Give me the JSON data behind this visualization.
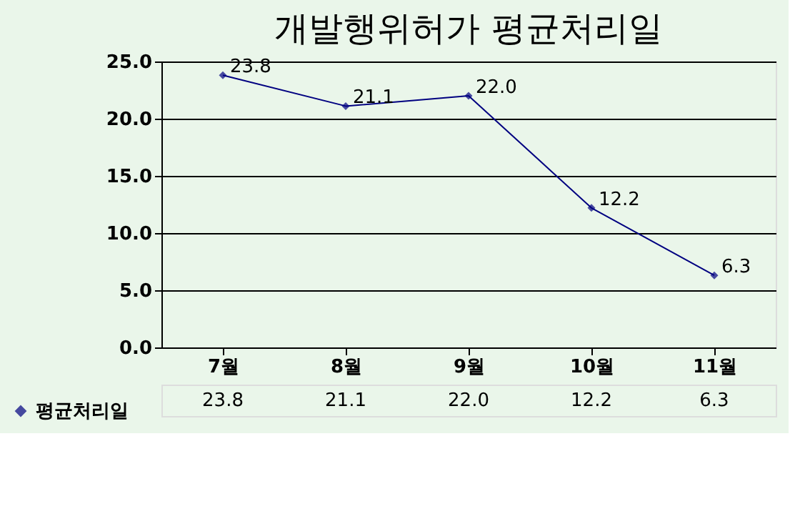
{
  "chart_data": {
    "type": "line",
    "title": "개발행위허가 평균처리일",
    "categories": [
      "7월",
      "8월",
      "9월",
      "10월",
      "11월"
    ],
    "series": [
      {
        "name": "평균처리일",
        "color": "#000080",
        "values": [
          23.8,
          21.1,
          22.0,
          12.2,
          6.3
        ],
        "value_labels": [
          "23.8",
          "21.1",
          "22.0",
          "12.2",
          "6.3"
        ]
      }
    ],
    "ylim": [
      0,
      25
    ],
    "yticks": [
      {
        "value": 0,
        "label": "0.0"
      },
      {
        "value": 5,
        "label": "5.0"
      },
      {
        "value": 10,
        "label": "10.0"
      },
      {
        "value": 15,
        "label": "15.0"
      },
      {
        "value": 20,
        "label": "20.0"
      },
      {
        "value": 25,
        "label": "25.0"
      }
    ],
    "grid": "y",
    "marker": "diamond",
    "line_style": "solid",
    "data_labels": true,
    "legend": "bottom left"
  }
}
